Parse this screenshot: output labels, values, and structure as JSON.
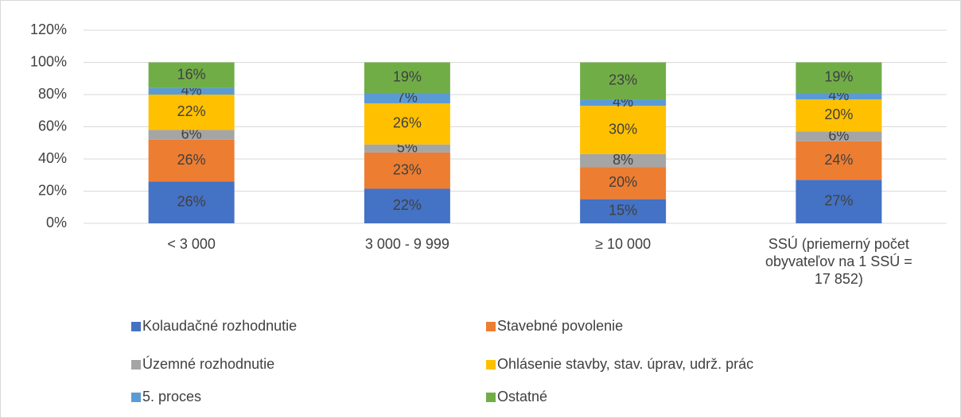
{
  "chart_data": {
    "type": "stacked_bar",
    "categories": [
      "< 3 000",
      "3 000 - 9 999",
      "≥ 10 000",
      "SSÚ (priemerný počet obyvateľov na 1 SSÚ = 17 852)"
    ],
    "series": [
      {
        "name": "Kolaudačné rozhodnutie",
        "color": "#4472c4",
        "values": [
          26,
          21.5,
          15,
          27
        ],
        "value_labels": [
          "26%",
          "22%",
          "15%",
          "27%"
        ]
      },
      {
        "name": "Stavebné povolenie",
        "color": "#ed7d31",
        "values": [
          26,
          22.5,
          20,
          24
        ],
        "value_labels": [
          "26%",
          "23%",
          "20%",
          "24%"
        ]
      },
      {
        "name": "Územné rozhodnutie",
        "color": "#a5a5a5",
        "values": [
          6,
          5,
          8,
          6
        ],
        "value_labels": [
          "6%",
          "5%",
          "8%",
          "6%"
        ]
      },
      {
        "name": "Ohlásenie stavby, stav. úprav, udrž. prác",
        "color": "#ffc000",
        "values": [
          22,
          25.5,
          30,
          20
        ],
        "value_labels": [
          "22%",
          "26%",
          "30%",
          "20%"
        ]
      },
      {
        "name": "5. proces",
        "color": "#5b9bd5",
        "values": [
          4,
          6.5,
          4,
          4
        ],
        "value_labels": [
          "4%",
          "7%",
          "4%",
          "4%"
        ]
      },
      {
        "name": "Ostatné",
        "color": "#70ad47",
        "values": [
          16,
          19,
          23,
          19
        ],
        "value_labels": [
          "16%",
          "19%",
          "23%",
          "19%"
        ]
      }
    ],
    "ylim": [
      0,
      120
    ],
    "yticks": [
      {
        "value": 0,
        "label": "0%"
      },
      {
        "value": 20,
        "label": "20%"
      },
      {
        "value": 40,
        "label": "40%"
      },
      {
        "value": 60,
        "label": "60%"
      },
      {
        "value": 80,
        "label": "80%"
      },
      {
        "value": 100,
        "label": "100%"
      },
      {
        "value": 120,
        "label": "120%"
      }
    ],
    "grid": true,
    "legend": "bottom"
  }
}
